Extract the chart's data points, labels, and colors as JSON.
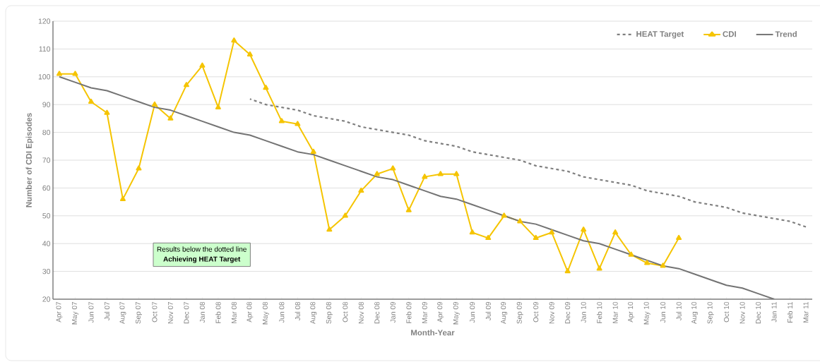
{
  "chart_data": {
    "type": "line",
    "xlabel": "Month-Year",
    "ylabel": "Number of CDI Episodes",
    "categories": [
      "Apr 07",
      "May 07",
      "Jun 07",
      "Jul 07",
      "Aug 07",
      "Sep 07",
      "Oct 07",
      "Nov 07",
      "Dec 07",
      "Jan 08",
      "Feb 08",
      "Mar 08",
      "Apr 08",
      "May 08",
      "Jun 08",
      "Jul 08",
      "Aug 08",
      "Sep 08",
      "Oct 08",
      "Nov 08",
      "Dec 08",
      "Jan 09",
      "Feb 09",
      "Mar 09",
      "Apr 09",
      "May 09",
      "Jun 09",
      "Jul 09",
      "Aug 09",
      "Sep 09",
      "Oct 09",
      "Nov 09",
      "Dec 09",
      "Jan 10",
      "Feb 10",
      "Mar 10",
      "Apr 10",
      "May 10",
      "Jun 10",
      "Jul 10",
      "Aug 10",
      "Sep 10",
      "Oct 10",
      "Nov 10",
      "Dec 10",
      "Jan 11",
      "Feb 11",
      "Mar 11"
    ],
    "series": [
      {
        "name": "HEAT Target",
        "color": "#7f7f7f",
        "line_style": "dashed",
        "marker": "none",
        "values": [
          null,
          null,
          null,
          null,
          null,
          null,
          null,
          null,
          null,
          null,
          null,
          null,
          92,
          90,
          89,
          88,
          86,
          85,
          84,
          82,
          81,
          80,
          79,
          77,
          76,
          75,
          73,
          72,
          71,
          70,
          68,
          67,
          66,
          64,
          63,
          62,
          61,
          59,
          58,
          57,
          55,
          54,
          53,
          51,
          50,
          49,
          48,
          46
        ]
      },
      {
        "name": "CDI",
        "color": "#f5c400",
        "line_style": "solid",
        "marker": "triangle",
        "values": [
          101,
          101,
          91,
          87,
          56,
          67,
          90,
          85,
          97,
          104,
          89,
          113,
          108,
          96,
          84,
          83,
          73,
          45,
          50,
          59,
          65,
          67,
          52,
          64,
          65,
          65,
          44,
          42,
          50,
          48,
          42,
          44,
          30,
          45,
          31,
          44,
          36,
          33,
          32,
          42,
          null,
          null,
          null,
          null,
          null,
          null,
          null,
          null
        ]
      },
      {
        "name": "Trend",
        "color": "#737373",
        "line_style": "solid",
        "marker": "none",
        "values": [
          100,
          98,
          96,
          95,
          93,
          91,
          89,
          88,
          86,
          84,
          82,
          80,
          79,
          77,
          75,
          73,
          72,
          70,
          68,
          66,
          64,
          63,
          61,
          59,
          57,
          56,
          54,
          52,
          50,
          48,
          47,
          45,
          43,
          41,
          40,
          38,
          36,
          34,
          32,
          31,
          29,
          27,
          25,
          24,
          22,
          20,
          null,
          null
        ]
      }
    ],
    "ylim": [
      20,
      120
    ],
    "yticks": [
      20,
      30,
      40,
      50,
      60,
      70,
      80,
      90,
      100,
      110,
      120
    ],
    "grid": "y",
    "legend": "top right",
    "annotations": [
      "Results below  the dotted line",
      "Achieving HEAT Target"
    ]
  }
}
